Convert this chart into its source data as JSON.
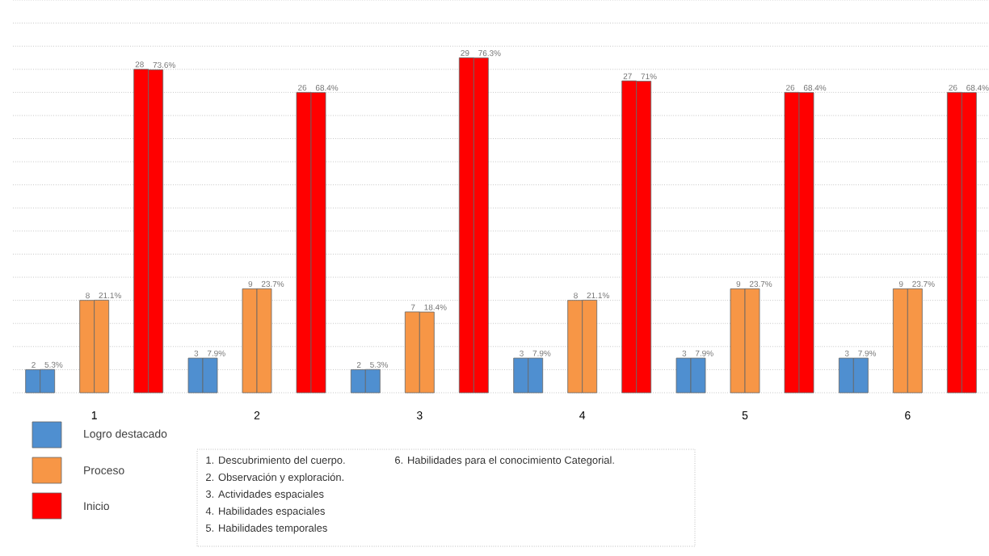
{
  "chart_data": {
    "type": "bar",
    "categories": [
      "1",
      "2",
      "3",
      "4",
      "5",
      "6"
    ],
    "series": [
      {
        "name": "Logro destacado",
        "color": "#4f8fd0",
        "values": [
          2,
          3,
          2,
          3,
          3,
          3
        ],
        "value_labels": [
          "2",
          "3",
          "2",
          "3",
          "3",
          "3"
        ]
      },
      {
        "color": "#4f8fd0",
        "axis": "y2",
        "values": [
          5.3,
          7.9,
          5.3,
          7.9,
          7.9,
          7.9
        ],
        "value_labels": [
          "5.3%",
          "7.9%",
          "5.3%",
          "7.9%",
          "7.9%",
          "7.9%"
        ]
      },
      {
        "name": "Proceso",
        "color": "#f79646",
        "values": [
          8,
          9,
          7,
          8,
          9,
          9
        ],
        "value_labels": [
          "8",
          "9",
          "7",
          "8",
          "9",
          "9"
        ]
      },
      {
        "color": "#f79646",
        "axis": "y2",
        "values": [
          21.1,
          23.7,
          18.4,
          21.1,
          23.7,
          23.7
        ],
        "value_labels": [
          "21.1%",
          "23.7%",
          "18.4%",
          "21.1%",
          "23.7%",
          "23.7%"
        ]
      },
      {
        "name": "Inicio",
        "color": "#ff0000",
        "values": [
          28,
          26,
          29,
          27,
          26,
          26
        ],
        "value_labels": [
          "28",
          "26",
          "29",
          "27",
          "26",
          "26"
        ]
      },
      {
        "color": "#ff0000",
        "axis": "y2",
        "values": [
          73.6,
          68.4,
          76.3,
          71,
          68.4,
          68.4
        ],
        "value_labels": [
          "73.6%",
          "68.4%",
          "76.3%",
          "71%",
          "68.4%",
          "68.4%"
        ]
      }
    ],
    "ylim": [
      0,
      34
    ],
    "yticks": [
      0,
      2,
      4,
      6,
      8,
      10,
      12,
      14,
      16,
      18,
      20,
      22,
      24,
      26,
      28,
      30,
      32,
      34
    ],
    "y2lim": [
      0,
      89.5
    ],
    "grid": "y",
    "tick_labels": "x",
    "legend": "bottom left",
    "annotations": [
      "1. Descubrimiento del cuerpo.",
      "2. Observación y exploración.",
      "3. Actividades espaciales",
      "4. Habilidades espaciales",
      "5. Habilidades temporales",
      "6. Habilidades para el conocimiento Categorial."
    ]
  }
}
